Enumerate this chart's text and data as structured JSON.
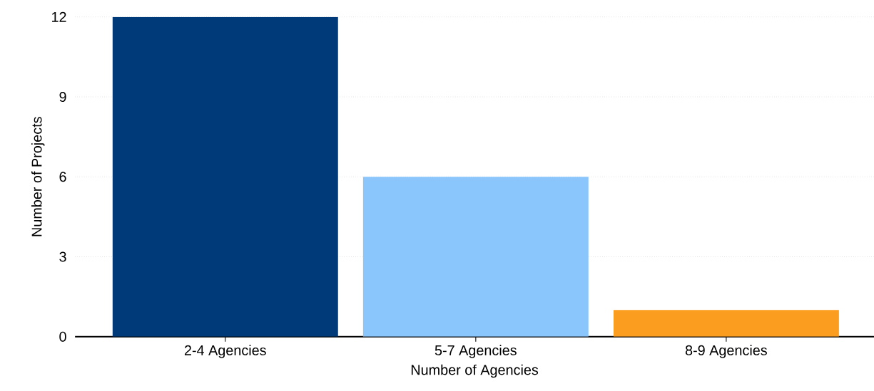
{
  "chart_data": {
    "type": "bar",
    "xlabel": "Number of Agencies",
    "ylabel": "Number of Projects",
    "categories": [
      "2-4 Agencies",
      "5-7 Agencies",
      "8-9 Agencies"
    ],
    "values": [
      12,
      6,
      1
    ],
    "colors": [
      "#003a78",
      "#8ac6fc",
      "#fb9e1f"
    ],
    "ylim": [
      0,
      12
    ],
    "yticks": [
      0,
      3,
      6,
      9,
      12
    ],
    "grid": "y"
  }
}
